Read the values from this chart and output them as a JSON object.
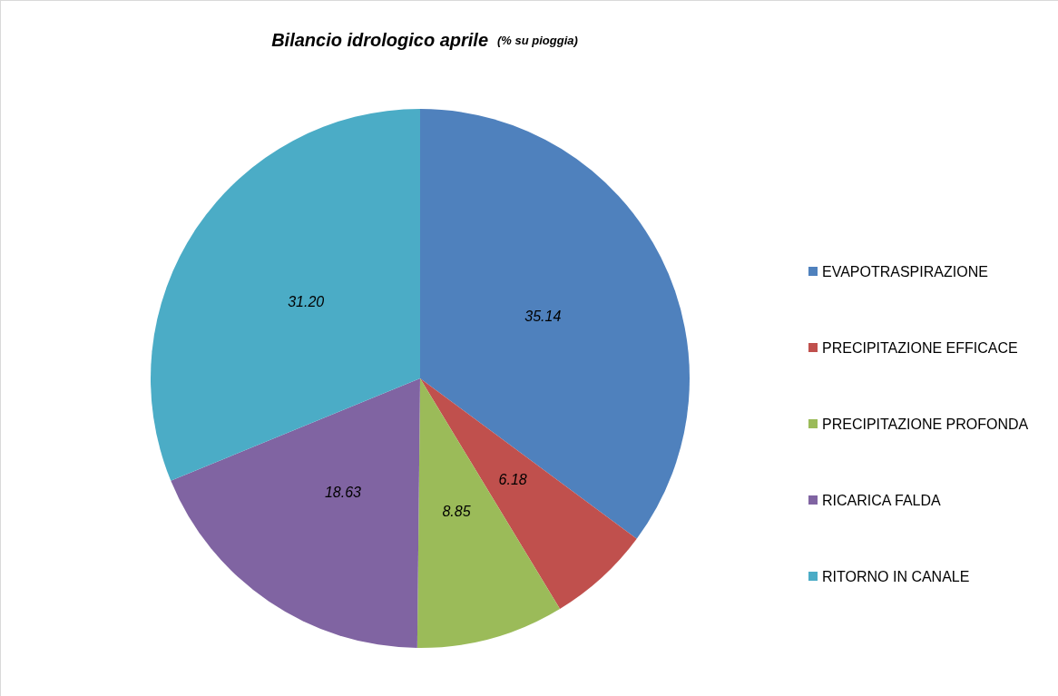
{
  "chart_data": {
    "type": "pie",
    "title": "Bilancio idrologico aprile",
    "subtitle": "(% su pioggia)",
    "categories": [
      "EVAPOTRASPIRAZIONE",
      "PRECIPITAZIONE EFFICACE",
      "PRECIPITAZIONE PROFONDA",
      "RICARICA FALDA",
      "RITORNO IN CANALE"
    ],
    "values": [
      35.14,
      6.18,
      8.85,
      18.63,
      31.2
    ],
    "value_labels": [
      "35.14",
      "6.18",
      "8.85",
      "18.63",
      "31.20"
    ],
    "colors": [
      "#4f81bd",
      "#c0504d",
      "#9bbb59",
      "#8064a2",
      "#4bacc6"
    ],
    "legend": "right"
  }
}
